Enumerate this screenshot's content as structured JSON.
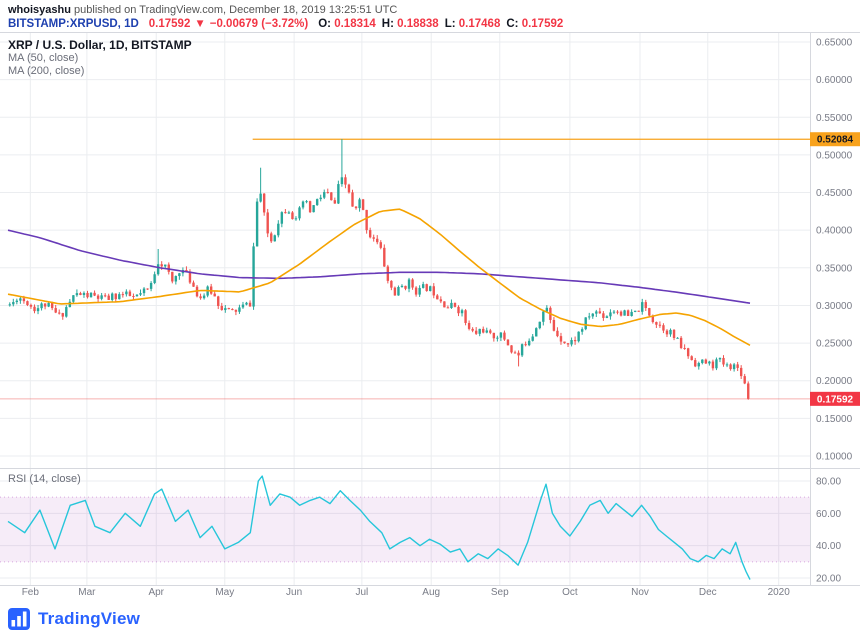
{
  "header": {
    "author": "whoisyashu",
    "published": " published on TradingView.com, December 18, 2019 13:25:51 UTC",
    "symbol": "BITSTAMP:XRPUSD, 1D",
    "last": "0.17592",
    "arrow": "▼",
    "change": "−0.00679 (−3.72%)",
    "o_label": "O:",
    "o_value": "0.18314",
    "h_label": "H:",
    "h_value": "0.18838",
    "l_label": "L:",
    "l_value": "0.17468",
    "c_label": "C:",
    "c_value": "0.17592"
  },
  "legend": {
    "title": "XRP / U.S. Dollar, 1D, BITSTAMP",
    "ma50": "MA (50, close)",
    "ma200": "MA (200, close)",
    "rsi": "RSI (14, close)"
  },
  "footer": {
    "brand": "TradingView"
  },
  "colors": {
    "up": "#26a69a",
    "down": "#ef5350",
    "ma50": "#f5a300",
    "ma200": "#673ab7",
    "rsi": "#26c6da",
    "rsi_band": "rgba(171,71,188,0.10)",
    "rsi_band_edge": "rgba(171,71,188,0.45)",
    "hline": "#f8a21c",
    "last_label_bg": "#f23645",
    "grid": "#ebedf0",
    "border": "#d6d8de",
    "axis_text": "#787b86"
  },
  "chart_data": {
    "type": "candlestick",
    "title": "XRP / U.S. Dollar, 1D, BITSTAMP",
    "exchange": "BITSTAMP",
    "interval": "1D",
    "price_axis": {
      "ticks": [
        0.65,
        0.6,
        0.55,
        0.5,
        0.45,
        0.4,
        0.35,
        0.3,
        0.25,
        0.2,
        0.15,
        0.1
      ],
      "range": [
        0.075,
        0.663
      ],
      "decimals": 5
    },
    "x_axis": {
      "labels": [
        {
          "label": "Feb",
          "t": 0.028
        },
        {
          "label": "Mar",
          "t": 0.099
        },
        {
          "label": "Apr",
          "t": 0.186
        },
        {
          "label": "May",
          "t": 0.272
        },
        {
          "label": "Jun",
          "t": 0.359
        },
        {
          "label": "Jul",
          "t": 0.444
        },
        {
          "label": "Aug",
          "t": 0.531
        },
        {
          "label": "Sep",
          "t": 0.617
        },
        {
          "label": "Oct",
          "t": 0.705
        },
        {
          "label": "Nov",
          "t": 0.793
        },
        {
          "label": "Dec",
          "t": 0.878
        },
        {
          "label": "2020",
          "t": 0.967
        }
      ]
    },
    "horizontal_line": {
      "price": 0.52084,
      "label": "0.52084",
      "start_t": 0.307
    },
    "last_price": {
      "value": 0.17592,
      "label": "0.17592"
    },
    "ohlc_today": {
      "open": 0.18314,
      "high": 0.18838,
      "low": 0.17468,
      "close": 0.17592
    },
    "candle_count": 210,
    "data_end_t": 0.931,
    "close_path": [
      [
        0,
        0.3
      ],
      [
        0.015,
        0.31
      ],
      [
        0.034,
        0.295
      ],
      [
        0.046,
        0.302
      ],
      [
        0.065,
        0.285
      ],
      [
        0.084,
        0.315
      ],
      [
        0.103,
        0.313
      ],
      [
        0.122,
        0.308
      ],
      [
        0.141,
        0.315
      ],
      [
        0.159,
        0.31
      ],
      [
        0.178,
        0.322
      ],
      [
        0.188,
        0.36
      ],
      [
        0.197,
        0.352
      ],
      [
        0.206,
        0.33
      ],
      [
        0.216,
        0.35
      ],
      [
        0.228,
        0.335
      ],
      [
        0.241,
        0.31
      ],
      [
        0.253,
        0.322
      ],
      [
        0.266,
        0.3
      ],
      [
        0.279,
        0.29
      ],
      [
        0.291,
        0.296
      ],
      [
        0.304,
        0.303
      ],
      [
        0.311,
        0.43
      ],
      [
        0.316,
        0.455
      ],
      [
        0.324,
        0.4
      ],
      [
        0.331,
        0.385
      ],
      [
        0.341,
        0.42
      ],
      [
        0.351,
        0.432
      ],
      [
        0.361,
        0.41
      ],
      [
        0.371,
        0.44
      ],
      [
        0.379,
        0.425
      ],
      [
        0.389,
        0.44
      ],
      [
        0.399,
        0.452
      ],
      [
        0.409,
        0.43
      ],
      [
        0.417,
        0.468
      ],
      [
        0.427,
        0.455
      ],
      [
        0.434,
        0.42
      ],
      [
        0.442,
        0.44
      ],
      [
        0.452,
        0.395
      ],
      [
        0.46,
        0.39
      ],
      [
        0.469,
        0.37
      ],
      [
        0.477,
        0.33
      ],
      [
        0.486,
        0.315
      ],
      [
        0.494,
        0.325
      ],
      [
        0.504,
        0.33
      ],
      [
        0.514,
        0.318
      ],
      [
        0.524,
        0.325
      ],
      [
        0.535,
        0.318
      ],
      [
        0.542,
        0.31
      ],
      [
        0.552,
        0.298
      ],
      [
        0.561,
        0.3
      ],
      [
        0.57,
        0.29
      ],
      [
        0.577,
        0.268
      ],
      [
        0.586,
        0.262
      ],
      [
        0.595,
        0.27
      ],
      [
        0.605,
        0.258
      ],
      [
        0.615,
        0.262
      ],
      [
        0.624,
        0.255
      ],
      [
        0.632,
        0.24
      ],
      [
        0.64,
        0.232
      ],
      [
        0.648,
        0.25
      ],
      [
        0.658,
        0.262
      ],
      [
        0.668,
        0.285
      ],
      [
        0.675,
        0.298
      ],
      [
        0.683,
        0.27
      ],
      [
        0.693,
        0.258
      ],
      [
        0.703,
        0.248
      ],
      [
        0.711,
        0.255
      ],
      [
        0.72,
        0.27
      ],
      [
        0.73,
        0.288
      ],
      [
        0.74,
        0.292
      ],
      [
        0.749,
        0.285
      ],
      [
        0.758,
        0.295
      ],
      [
        0.768,
        0.292
      ],
      [
        0.778,
        0.285
      ],
      [
        0.787,
        0.29
      ],
      [
        0.795,
        0.3
      ],
      [
        0.803,
        0.292
      ],
      [
        0.812,
        0.278
      ],
      [
        0.821,
        0.272
      ],
      [
        0.831,
        0.264
      ],
      [
        0.841,
        0.25
      ],
      [
        0.849,
        0.24
      ],
      [
        0.858,
        0.228
      ],
      [
        0.866,
        0.222
      ],
      [
        0.874,
        0.225
      ],
      [
        0.883,
        0.22
      ],
      [
        0.891,
        0.228
      ],
      [
        0.898,
        0.222
      ],
      [
        0.906,
        0.218
      ],
      [
        0.913,
        0.222
      ],
      [
        0.921,
        0.205
      ],
      [
        0.926,
        0.192
      ],
      [
        0.931,
        0.176
      ]
    ],
    "extremes": [
      {
        "t": 0.188,
        "high": 0.375
      },
      {
        "t": 0.316,
        "high": 0.483
      },
      {
        "t": 0.417,
        "high": 0.521
      },
      {
        "t": 0.64,
        "low": 0.219
      },
      {
        "t": 0.931,
        "low": 0.1747
      }
    ],
    "ma50_path": [
      [
        0,
        0.315
      ],
      [
        0.065,
        0.302
      ],
      [
        0.141,
        0.305
      ],
      [
        0.191,
        0.312
      ],
      [
        0.241,
        0.32
      ],
      [
        0.291,
        0.318
      ],
      [
        0.329,
        0.33
      ],
      [
        0.366,
        0.355
      ],
      [
        0.404,
        0.385
      ],
      [
        0.435,
        0.408
      ],
      [
        0.467,
        0.425
      ],
      [
        0.492,
        0.428
      ],
      [
        0.517,
        0.415
      ],
      [
        0.542,
        0.395
      ],
      [
        0.567,
        0.372
      ],
      [
        0.592,
        0.35
      ],
      [
        0.617,
        0.33
      ],
      [
        0.642,
        0.31
      ],
      [
        0.668,
        0.295
      ],
      [
        0.693,
        0.283
      ],
      [
        0.718,
        0.275
      ],
      [
        0.743,
        0.272
      ],
      [
        0.768,
        0.275
      ],
      [
        0.793,
        0.282
      ],
      [
        0.818,
        0.288
      ],
      [
        0.838,
        0.29
      ],
      [
        0.856,
        0.287
      ],
      [
        0.874,
        0.28
      ],
      [
        0.893,
        0.27
      ],
      [
        0.912,
        0.258
      ],
      [
        0.931,
        0.247
      ]
    ],
    "ma200_path": [
      [
        0,
        0.4
      ],
      [
        0.04,
        0.39
      ],
      [
        0.09,
        0.373
      ],
      [
        0.141,
        0.36
      ],
      [
        0.191,
        0.35
      ],
      [
        0.241,
        0.342
      ],
      [
        0.291,
        0.337
      ],
      [
        0.341,
        0.336
      ],
      [
        0.391,
        0.338
      ],
      [
        0.442,
        0.342
      ],
      [
        0.492,
        0.344
      ],
      [
        0.542,
        0.344
      ],
      [
        0.592,
        0.342
      ],
      [
        0.642,
        0.338
      ],
      [
        0.693,
        0.334
      ],
      [
        0.743,
        0.33
      ],
      [
        0.793,
        0.324
      ],
      [
        0.843,
        0.317
      ],
      [
        0.881,
        0.311
      ],
      [
        0.906,
        0.307
      ],
      [
        0.931,
        0.303
      ]
    ],
    "rsi": {
      "levels": [
        80,
        60,
        40,
        20
      ],
      "band": [
        30,
        70
      ],
      "path": [
        [
          0,
          55
        ],
        [
          0.021,
          48
        ],
        [
          0.04,
          62
        ],
        [
          0.059,
          38
        ],
        [
          0.078,
          65
        ],
        [
          0.097,
          68
        ],
        [
          0.109,
          52
        ],
        [
          0.128,
          48
        ],
        [
          0.147,
          60
        ],
        [
          0.166,
          52
        ],
        [
          0.184,
          72
        ],
        [
          0.193,
          75
        ],
        [
          0.21,
          55
        ],
        [
          0.226,
          62
        ],
        [
          0.241,
          45
        ],
        [
          0.256,
          52
        ],
        [
          0.272,
          38
        ],
        [
          0.289,
          42
        ],
        [
          0.304,
          48
        ],
        [
          0.314,
          80
        ],
        [
          0.319,
          83
        ],
        [
          0.329,
          65
        ],
        [
          0.341,
          72
        ],
        [
          0.354,
          70
        ],
        [
          0.366,
          65
        ],
        [
          0.379,
          68
        ],
        [
          0.391,
          70
        ],
        [
          0.404,
          66
        ],
        [
          0.417,
          74
        ],
        [
          0.429,
          68
        ],
        [
          0.442,
          62
        ],
        [
          0.454,
          55
        ],
        [
          0.469,
          48
        ],
        [
          0.479,
          38
        ],
        [
          0.492,
          42
        ],
        [
          0.504,
          45
        ],
        [
          0.517,
          40
        ],
        [
          0.529,
          44
        ],
        [
          0.542,
          41
        ],
        [
          0.555,
          36
        ],
        [
          0.567,
          38
        ],
        [
          0.577,
          30
        ],
        [
          0.59,
          35
        ],
        [
          0.602,
          32
        ],
        [
          0.615,
          38
        ],
        [
          0.627,
          34
        ],
        [
          0.64,
          28
        ],
        [
          0.652,
          42
        ],
        [
          0.668,
          68
        ],
        [
          0.675,
          78
        ],
        [
          0.683,
          60
        ],
        [
          0.693,
          52
        ],
        [
          0.705,
          46
        ],
        [
          0.718,
          55
        ],
        [
          0.73,
          65
        ],
        [
          0.743,
          68
        ],
        [
          0.753,
          60
        ],
        [
          0.763,
          66
        ],
        [
          0.773,
          62
        ],
        [
          0.783,
          58
        ],
        [
          0.795,
          65
        ],
        [
          0.806,
          58
        ],
        [
          0.816,
          50
        ],
        [
          0.826,
          46
        ],
        [
          0.836,
          42
        ],
        [
          0.846,
          38
        ],
        [
          0.856,
          32
        ],
        [
          0.866,
          30
        ],
        [
          0.876,
          34
        ],
        [
          0.886,
          32
        ],
        [
          0.896,
          38
        ],
        [
          0.906,
          35
        ],
        [
          0.913,
          42
        ],
        [
          0.921,
          30
        ],
        [
          0.926,
          24
        ],
        [
          0.931,
          19
        ]
      ]
    }
  }
}
